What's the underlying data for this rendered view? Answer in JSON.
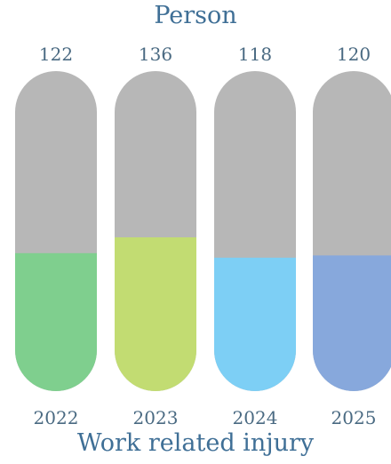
{
  "chart_data": {
    "type": "bar",
    "title": "Work related injury",
    "unit": "Person",
    "categories": [
      "2022",
      "2023",
      "2024",
      "2025"
    ],
    "values": [
      122,
      136,
      118,
      120
    ],
    "bar_colors": [
      "#7fcf8e",
      "#c2dc72",
      "#7dcff5",
      "#87a8dc"
    ],
    "track_color": "#b7b7b7",
    "title_color": "#3f6f96",
    "label_color": "#4a6a82"
  }
}
